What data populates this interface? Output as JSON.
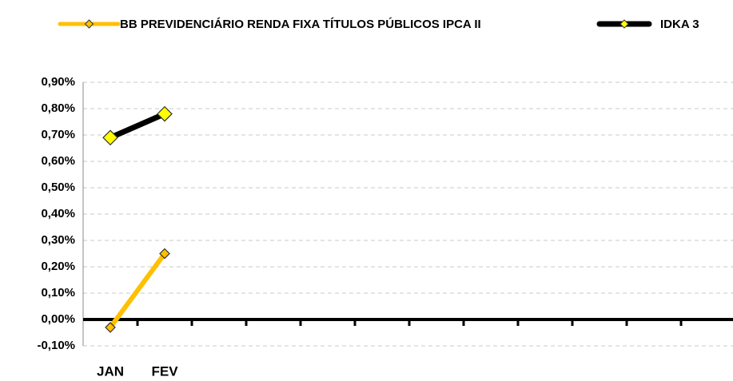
{
  "chart_data": {
    "type": "line",
    "categories": [
      "JAN",
      "FEV",
      null,
      null,
      null,
      null,
      null,
      null,
      null,
      null,
      null,
      null
    ],
    "series": [
      {
        "name": "BB PREVIDENCIÁRIO RENDA FIXA TÍTULOS PÚBLICOS IPCA II",
        "color": "#ffc000",
        "marker_color": "#ffc000",
        "values": [
          -0.03,
          0.25,
          null,
          null,
          null,
          null,
          null,
          null,
          null,
          null,
          null,
          null
        ]
      },
      {
        "name": "IDKA 3",
        "color": "#000000",
        "marker_color": "#ffff00",
        "values": [
          0.69,
          0.78,
          null,
          null,
          null,
          null,
          null,
          null,
          null,
          null,
          null,
          null
        ]
      }
    ],
    "ylim": [
      -0.1,
      0.9
    ],
    "yticks": [
      {
        "value": -0.1,
        "label": "-0,10%"
      },
      {
        "value": 0,
        "label": "0,00%"
      },
      {
        "value": 0.1,
        "label": "0,10%"
      },
      {
        "value": 0.2,
        "label": "0,20%"
      },
      {
        "value": 0.3,
        "label": "0,30%"
      },
      {
        "value": 0.4,
        "label": "0,40%"
      },
      {
        "value": 0.5,
        "label": "0,50%"
      },
      {
        "value": 0.6,
        "label": "0,60%"
      },
      {
        "value": 0.7,
        "label": "0,70%"
      },
      {
        "value": 0.8,
        "label": "0,80%"
      },
      {
        "value": 0.9,
        "label": "0,90%"
      }
    ],
    "grid": true,
    "legend": "top"
  }
}
